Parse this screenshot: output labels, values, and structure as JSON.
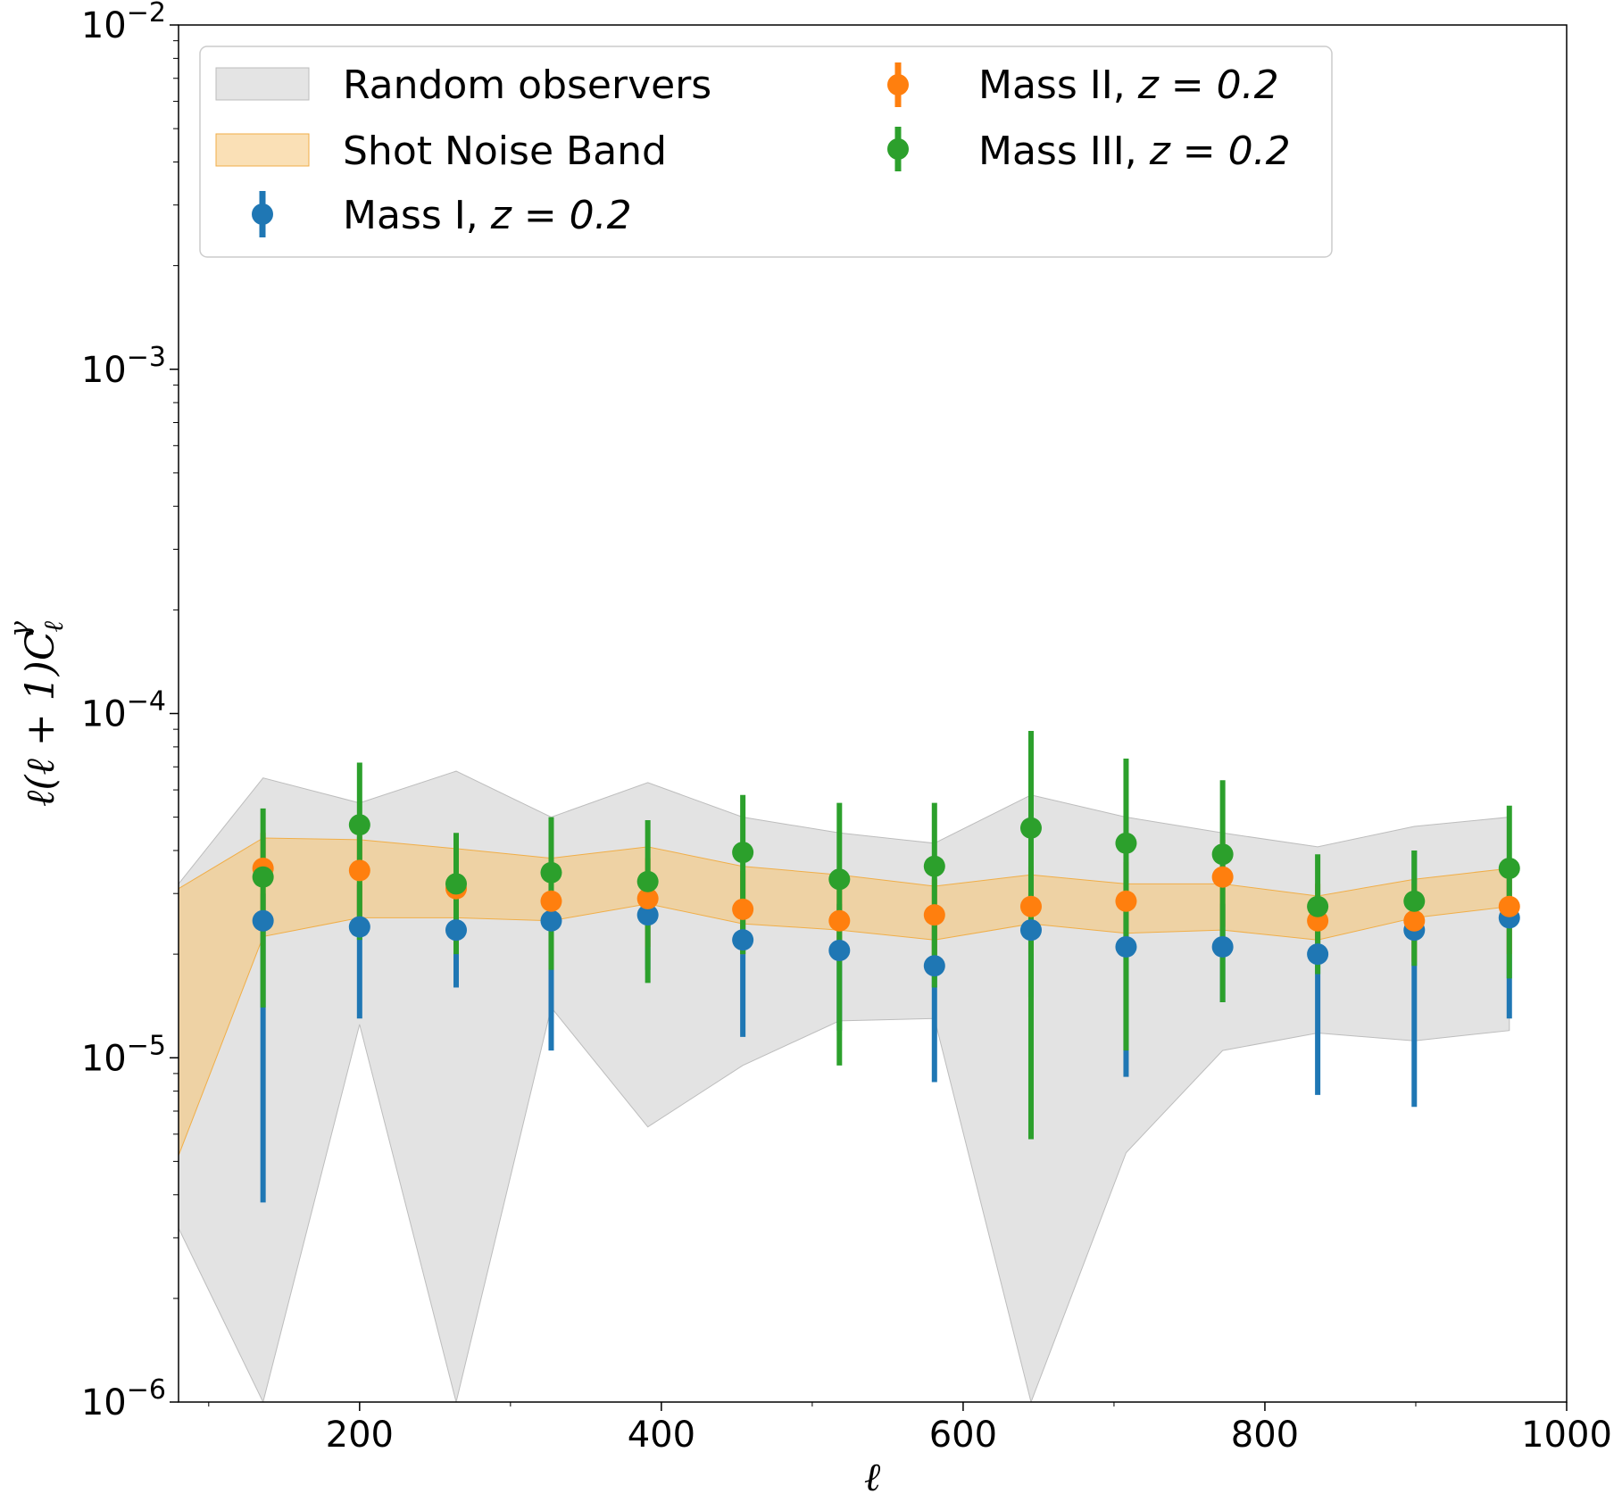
{
  "chart_data": {
    "type": "scatter",
    "xlabel": "ℓ",
    "ylabel": "ℓ(ℓ + 1)C",
    "ylabel_sub": "ℓ",
    "ylabel_sup": "γ",
    "xlim": [
      80,
      1000
    ],
    "ylim": [
      1e-06,
      0.01
    ],
    "yscale": "log",
    "xticks": [
      200,
      400,
      600,
      800,
      1000
    ],
    "xtick_labels": [
      "200",
      "400",
      "600",
      "800",
      "1000"
    ],
    "yticks": [
      1e-06,
      1e-05,
      0.0001,
      0.001,
      0.01
    ],
    "ytick_labels": [
      {
        "base": "10",
        "exp": "−6"
      },
      {
        "base": "10",
        "exp": "−5"
      },
      {
        "base": "10",
        "exp": "−4"
      },
      {
        "base": "10",
        "exp": "−3"
      },
      {
        "base": "10",
        "exp": "−2"
      }
    ],
    "grid": false,
    "legend_position": "top",
    "colors": {
      "random": "#d9d9d9",
      "random_edge": "#bdbdbd",
      "shot": "#f5c77a",
      "shot_edge": "#f0ae48",
      "mass1": "#1f77b4",
      "mass2": "#ff7f0e",
      "mass3": "#2ca02c"
    },
    "bands": [
      {
        "name": "Random observers",
        "x": [
          80,
          136,
          200,
          264,
          327,
          391,
          454,
          518,
          581,
          645,
          708,
          772,
          835,
          899,
          962
        ],
        "lower": [
          3.2e-06,
          1e-06,
          1.25e-05,
          1e-06,
          1.4e-05,
          6.3e-06,
          9.5e-06,
          1.28e-05,
          1.3e-05,
          1e-06,
          5.3e-06,
          1.05e-05,
          1.18e-05,
          1.12e-05,
          1.2e-05
        ],
        "upper": [
          3.2e-05,
          6.5e-05,
          5.5e-05,
          6.8e-05,
          5e-05,
          6.3e-05,
          5e-05,
          4.5e-05,
          4.2e-05,
          5.8e-05,
          5e-05,
          4.5e-05,
          4.1e-05,
          4.7e-05,
          5e-05
        ]
      },
      {
        "name": "Shot Noise Band",
        "x": [
          80,
          136,
          200,
          264,
          327,
          391,
          454,
          518,
          581,
          645,
          708,
          772,
          835,
          899,
          962
        ],
        "lower": [
          5.2e-06,
          2.25e-05,
          2.55e-05,
          2.55e-05,
          2.5e-05,
          2.8e-05,
          2.45e-05,
          2.35e-05,
          2.2e-05,
          2.45e-05,
          2.3e-05,
          2.35e-05,
          2.2e-05,
          2.55e-05,
          2.75e-05
        ],
        "upper": [
          3.1e-05,
          4.35e-05,
          4.3e-05,
          4.05e-05,
          3.8e-05,
          4.1e-05,
          3.6e-05,
          3.4e-05,
          3.15e-05,
          3.4e-05,
          3.2e-05,
          3.2e-05,
          2.95e-05,
          3.3e-05,
          3.55e-05
        ]
      }
    ],
    "series": [
      {
        "name": "Mass I",
        "roman": "I",
        "z_text": "z = 0.2",
        "x": [
          136,
          200,
          264,
          327,
          391,
          454,
          518,
          581,
          645,
          708,
          772,
          835,
          899,
          962
        ],
        "values": [
          2.5e-05,
          2.4e-05,
          2.35e-05,
          2.5e-05,
          2.6e-05,
          2.2e-05,
          2.05e-05,
          1.85e-05,
          2.35e-05,
          2.1e-05,
          2.1e-05,
          2e-05,
          2.35e-05,
          2.55e-05
        ],
        "err_low": [
          3.8e-06,
          1.3e-05,
          1.6e-05,
          1.05e-05,
          1.8e-05,
          1.15e-05,
          1.2e-05,
          8.5e-06,
          1.5e-05,
          8.8e-06,
          1.45e-05,
          7.8e-06,
          7.2e-06,
          1.3e-05
        ],
        "err_high": [
          3e-05,
          3.2e-05,
          3e-05,
          3.2e-05,
          3.3e-05,
          2.9e-05,
          2.8e-05,
          2.5e-05,
          3e-05,
          2.9e-05,
          2.8e-05,
          2.9e-05,
          4e-05,
          3.3e-05
        ]
      },
      {
        "name": "Mass II",
        "roman": "II",
        "z_text": "z = 0.2",
        "x": [
          136,
          200,
          264,
          327,
          391,
          454,
          518,
          581,
          645,
          708,
          772,
          835,
          899,
          962
        ],
        "values": [
          3.55e-05,
          3.5e-05,
          3.1e-05,
          2.85e-05,
          2.9e-05,
          2.7e-05,
          2.5e-05,
          2.6e-05,
          2.75e-05,
          2.85e-05,
          3.35e-05,
          2.5e-05,
          2.5e-05,
          2.75e-05
        ],
        "err_low": [
          2.5e-05,
          2.5e-05,
          2.4e-05,
          2e-05,
          2.1e-05,
          2e-05,
          1.9e-05,
          1.9e-05,
          2e-05,
          2.1e-05,
          2.4e-05,
          1.9e-05,
          1.9e-05,
          2e-05
        ],
        "err_high": [
          4.5e-05,
          4.4e-05,
          4e-05,
          3.7e-05,
          3.8e-05,
          3.5e-05,
          3.3e-05,
          3.3e-05,
          3.6e-05,
          3.7e-05,
          4.3e-05,
          3.2e-05,
          3.2e-05,
          3.5e-05
        ]
      },
      {
        "name": "Mass III",
        "roman": "III",
        "z_text": "z = 0.2",
        "x": [
          136,
          200,
          264,
          327,
          391,
          454,
          518,
          581,
          645,
          708,
          772,
          835,
          899,
          962
        ],
        "values": [
          3.35e-05,
          4.75e-05,
          3.2e-05,
          3.45e-05,
          3.25e-05,
          3.95e-05,
          3.3e-05,
          3.6e-05,
          4.65e-05,
          4.2e-05,
          3.9e-05,
          2.75e-05,
          2.85e-05,
          3.55e-05
        ],
        "err_low": [
          1.4e-05,
          2.2e-05,
          2e-05,
          1.8e-05,
          1.65e-05,
          2e-05,
          9.5e-06,
          1.6e-05,
          5.8e-06,
          1.05e-05,
          1.45e-05,
          1.75e-05,
          1.85e-05,
          1.7e-05
        ],
        "err_high": [
          5.3e-05,
          7.2e-05,
          4.5e-05,
          5e-05,
          4.9e-05,
          5.8e-05,
          5.5e-05,
          5.5e-05,
          8.9e-05,
          7.4e-05,
          6.4e-05,
          3.9e-05,
          4e-05,
          5.4e-05
        ]
      }
    ]
  }
}
